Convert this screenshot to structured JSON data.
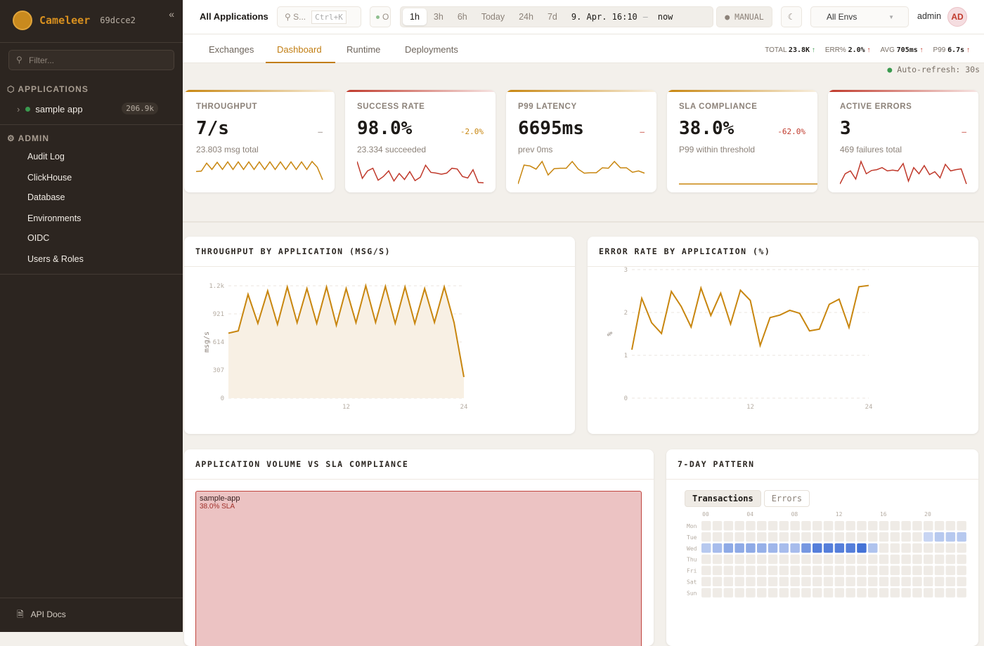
{
  "sidebar": {
    "brand": "Cameleer",
    "version": "69dcce2",
    "collapse_icon": "«",
    "filter_placeholder": "Filter...",
    "applications_label": "APPLICATIONS",
    "apps": [
      {
        "name": "sample app",
        "count": "206.9k",
        "status": "running"
      }
    ],
    "admin_label": "ADMIN",
    "admin_items": [
      "Audit Log",
      "ClickHouse",
      "Database",
      "Environments",
      "OIDC",
      "Users & Roles"
    ],
    "api_docs": "API Docs"
  },
  "header": {
    "title": "All Applications",
    "search_label": "S...",
    "search_shortcut": "Ctrl+K",
    "status_label": "O",
    "time_ranges": [
      "1h",
      "3h",
      "6h",
      "Today",
      "24h",
      "7d"
    ],
    "active_range": "1h",
    "range_from": "9. Apr. 16:10",
    "range_sep": "–",
    "range_to": "now",
    "mode": "MANUAL",
    "env": "All Envs",
    "user": "admin",
    "avatar": "AD"
  },
  "tabs": [
    "Exchanges",
    "Dashboard",
    "Runtime",
    "Deployments"
  ],
  "active_tab": "Dashboard",
  "summary": {
    "total_label": "TOTAL",
    "total": "23.8K",
    "err_label": "ERR%",
    "err": "2.0%",
    "avg_label": "AVG",
    "avg": "705ms",
    "p99_label": "P99",
    "p99": "6.7s",
    "arrow": "↑"
  },
  "auto_refresh": "Auto-refresh: 30s",
  "kpis": [
    {
      "label": "THROUGHPUT",
      "value": "7/s",
      "delta": "–",
      "sub": "23.803 msg total",
      "color": "#c8860f",
      "delta_color": "#8c8279",
      "spark": [
        3,
        3.1,
        5,
        3.5,
        5.2,
        3.5,
        5.3,
        3.5,
        5.3,
        3.5,
        5.3,
        3.5,
        5.3,
        3.5,
        5.3,
        3.5,
        5.3,
        3.5,
        5.3,
        3.5,
        5.3,
        3.5,
        5.4,
        4,
        1
      ]
    },
    {
      "label": "SUCCESS RATE",
      "value": "98.0%",
      "delta": "-2.0%",
      "sub": "23.334 succeeded",
      "color": "#c0392b",
      "delta_color": "#c8860f",
      "spark": [
        6,
        1.5,
        3.5,
        4.2,
        1,
        2,
        3.5,
        0.8,
        2.8,
        1.2,
        3.3,
        0.9,
        1.8,
        5,
        3.1,
        2.9,
        2.6,
        2.9,
        4.2,
        4,
        2,
        1.6,
        3.8,
        0.4,
        0.3
      ]
    },
    {
      "label": "P99 LATENCY",
      "value": "6695ms",
      "delta": "–",
      "sub": "prev 0ms",
      "color": "#c8860f",
      "delta_color": "#c0392b",
      "spark": [
        0,
        4.2,
        4,
        3.3,
        5,
        2,
        3.4,
        3.5,
        3.5,
        5,
        3.3,
        2.4,
        2.5,
        2.5,
        3.6,
        3.5,
        5,
        3.6,
        3.6,
        2.6,
        2.9,
        2.4
      ]
    },
    {
      "label": "SLA COMPLIANCE",
      "value": "38.0%",
      "delta": "-62.0%",
      "sub": "P99 within threshold",
      "color": "#c8860f",
      "delta_color": "#c0392b",
      "spark": [
        0,
        0
      ]
    },
    {
      "label": "ACTIVE ERRORS",
      "value": "3",
      "delta": "–",
      "sub": "469 failures total",
      "color": "#c0392b",
      "delta_color": "#c0392b",
      "spark": [
        0,
        2.5,
        3.2,
        1.2,
        5.5,
        2.5,
        3.3,
        3.5,
        4,
        3.2,
        3.4,
        3.2,
        5,
        0.7,
        4,
        2.5,
        4.5,
        2.3,
        3,
        1.5,
        4.8,
        3.2,
        3.5,
        3.7,
        0
      ]
    }
  ],
  "chart_data": [
    {
      "type": "area",
      "title": "THROUGHPUT BY APPLICATION (MSG/S)",
      "xlabel": "",
      "ylabel": "msg/s",
      "ylim": [
        0,
        1228
      ],
      "yticks": [
        "0",
        "307",
        "614",
        "921",
        "1.2k"
      ],
      "xticks": [
        "12",
        "24"
      ],
      "grid": true,
      "color": "#c8860f",
      "x": [
        0,
        1,
        2,
        3,
        4,
        5,
        6,
        7,
        8,
        9,
        10,
        11,
        12,
        13,
        14,
        15,
        16,
        17,
        18,
        19,
        20,
        21,
        22,
        23,
        24
      ],
      "values": [
        710,
        735,
        1134,
        818,
        1172,
        807,
        1215,
        825,
        1197,
        817,
        1215,
        797,
        1197,
        825,
        1228,
        828,
        1221,
        817,
        1216,
        817,
        1197,
        828,
        1216,
        825,
        231
      ]
    },
    {
      "type": "line",
      "title": "ERROR RATE BY APPLICATION (%)",
      "xlabel": "",
      "ylabel": "%",
      "ylim": [
        0,
        3
      ],
      "yticks": [
        "0",
        "1",
        "2",
        "3"
      ],
      "xticks": [
        "12",
        "24"
      ],
      "grid": true,
      "color": "#c8860f",
      "x": [
        0,
        1,
        2,
        3,
        4,
        5,
        6,
        7,
        8,
        9,
        10,
        11,
        12,
        13,
        14,
        15,
        16,
        17,
        18,
        19,
        20,
        21,
        22,
        23,
        24
      ],
      "values": [
        1.13,
        2.33,
        1.76,
        1.51,
        2.49,
        2.14,
        1.66,
        2.57,
        1.93,
        2.45,
        1.73,
        2.52,
        2.28,
        1.23,
        1.88,
        1.94,
        2.05,
        1.98,
        1.57,
        1.61,
        2.19,
        2.31,
        1.65,
        2.6,
        2.63
      ]
    },
    {
      "type": "treemap",
      "title": "APPLICATION VOLUME VS SLA COMPLIANCE",
      "items": [
        {
          "name": "sample-app",
          "sla": "38.0% SLA"
        }
      ]
    },
    {
      "type": "heatmap",
      "title": "7-DAY PATTERN",
      "toggle": [
        "Transactions",
        "Errors"
      ],
      "active": "Transactions",
      "days": [
        "Mon",
        "Tue",
        "Wed",
        "Thu",
        "Fri",
        "Sat",
        "Sun"
      ],
      "hour_ticks": [
        "00",
        "04",
        "08",
        "12",
        "16",
        "20"
      ],
      "intensity": {
        "Tue": {
          "20": 0.15,
          "21": 0.25,
          "22": 0.25,
          "23": 0.25
        },
        "Wed": {
          "0": 0.25,
          "1": 0.35,
          "2": 0.5,
          "3": 0.5,
          "4": 0.5,
          "5": 0.45,
          "6": 0.4,
          "7": 0.35,
          "8": 0.35,
          "9": 0.65,
          "10": 0.85,
          "11": 0.85,
          "12": 0.85,
          "13": 0.85,
          "14": 0.95,
          "15": 0.3
        }
      }
    }
  ]
}
